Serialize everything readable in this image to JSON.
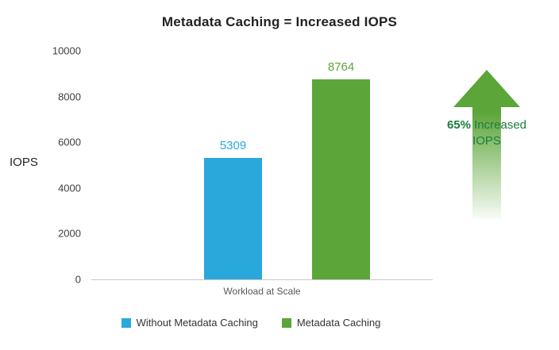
{
  "chart_data": {
    "type": "bar",
    "title": "Metadata Caching = Increased IOPS",
    "ylabel": "IOPS",
    "xlabel": "",
    "categories": [
      "Workload at Scale"
    ],
    "series": [
      {
        "name": "Without Metadata Caching",
        "values": [
          5309
        ],
        "color": "#29a8dc"
      },
      {
        "name": "Metadata Caching",
        "values": [
          8764
        ],
        "color": "#5ba539"
      }
    ],
    "ylim": [
      0,
      10000
    ],
    "yticks": [
      0,
      2000,
      4000,
      6000,
      8000,
      10000
    ],
    "grid": false,
    "legend_position": "bottom"
  },
  "annotation": {
    "percent": "65%",
    "label": " Increased IOPS",
    "arrow_color": "#5ba539",
    "text_color": "#1b7d3e"
  }
}
